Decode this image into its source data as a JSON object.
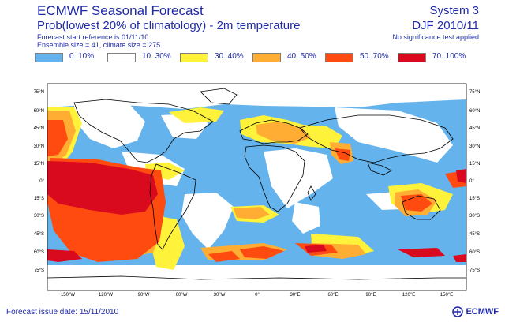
{
  "header": {
    "title": "ECMWF Seasonal Forecast",
    "subtitle": "Prob(lowest 20% of climatology) - 2m temperature",
    "start_reference": "Forecast start reference is 01/11/10",
    "ensemble": "Ensemble size = 41, climate size = 275",
    "system": "System 3",
    "period": "DJF 2010/11",
    "significance": "No significance test applied"
  },
  "legend": [
    {
      "label": "0..10%",
      "color": "#65b3ec"
    },
    {
      "label": "10..30%",
      "color": "#ffffff"
    },
    {
      "label": "30..40%",
      "color": "#fff23a"
    },
    {
      "label": "40..50%",
      "color": "#ffad33"
    },
    {
      "label": "50..70%",
      "color": "#ff4a10"
    },
    {
      "label": "70..100%",
      "color": "#d90a1e"
    }
  ],
  "axes": {
    "lon_labels": [
      "150°W",
      "120°W",
      "90°W",
      "60°W",
      "30°W",
      "0°",
      "30°E",
      "60°E",
      "90°E",
      "120°E",
      "150°E"
    ],
    "lat_labels": [
      "75°N",
      "60°N",
      "45°N",
      "30°N",
      "15°N",
      "0°",
      "15°S",
      "30°S",
      "45°S",
      "60°S",
      "75°S"
    ]
  },
  "footer": {
    "issue_date": "Forecast issue date: 15/11/2010",
    "logo_text": "ECMWF"
  }
}
